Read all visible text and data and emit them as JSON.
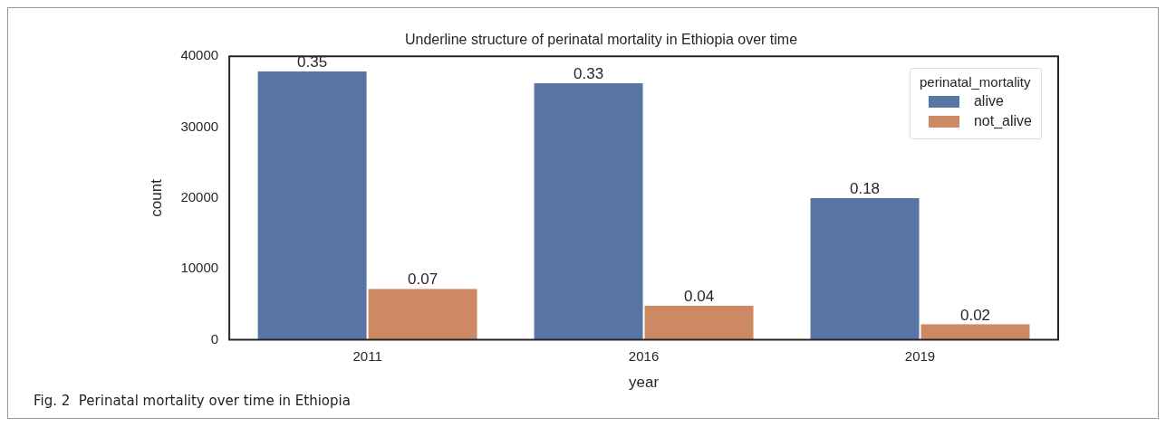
{
  "chart_data": {
    "type": "bar",
    "title": "Underline structure of perinatal mortality in Ethiopia over time",
    "xlabel": "year",
    "ylabel": "count",
    "legend_title": "perinatal_mortality",
    "categories": [
      "2011",
      "2016",
      "2019"
    ],
    "series": [
      {
        "name": "alive",
        "color": "#5975a4",
        "values": [
          37900,
          36200,
          20000
        ]
      },
      {
        "name": "not_alive",
        "color": "#cc8963",
        "values": [
          7200,
          4800,
          2200
        ]
      }
    ],
    "ylim": [
      0,
      40000
    ],
    "yticks": [
      0,
      10000,
      20000,
      30000,
      40000
    ],
    "grid": false,
    "legend": "top right",
    "annotations": [
      {
        "text": "0.35",
        "x": "2011",
        "y": 37900
      },
      {
        "text": "0.33",
        "x": "2016",
        "y": 36200
      },
      {
        "text": "0.18",
        "x": "2019",
        "y": 20000
      },
      {
        "text": "0.07",
        "x": "2011",
        "y": 7200
      },
      {
        "text": "0.04",
        "x": "2016",
        "y": 4800
      },
      {
        "text": "0.02",
        "x": "2019",
        "y": 2200
      },
      "Fig. 2  Perinatal mortality over time in Ethiopia"
    ]
  }
}
